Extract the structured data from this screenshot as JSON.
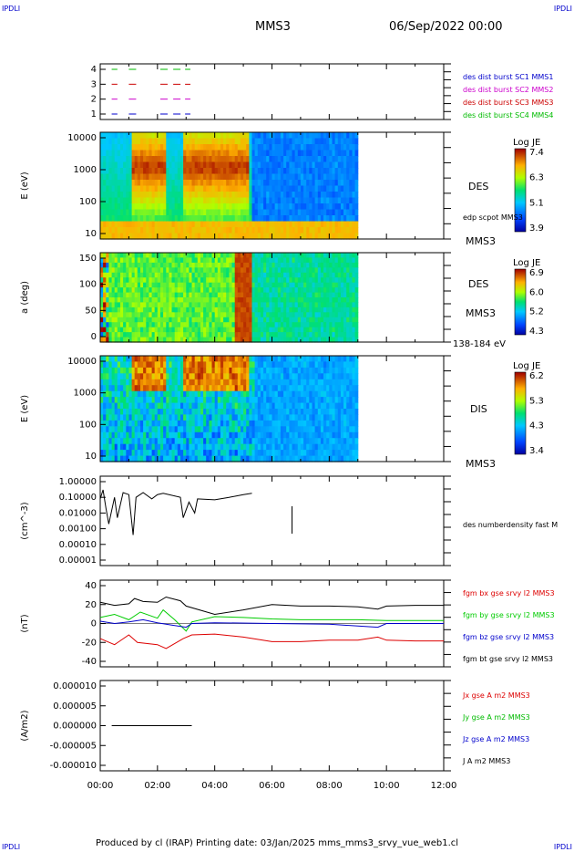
{
  "corner_labels": {
    "top_left": "IPDLI",
    "top_right": "IPDLI",
    "bottom_left": "IPDLI",
    "bottom_right": "IPDLI"
  },
  "header": {
    "spacecraft": "MMS3",
    "datetime": "06/Sep/2022 00:00"
  },
  "footer": {
    "text": "Produced by cl (IRAP)   Printing date: 03/Jan/2025   mms_mms3_srvy_vue_web1.cl"
  },
  "chart_data": [
    {
      "type": "line",
      "title": "",
      "yticks": [
        "4",
        "3",
        "2",
        "1"
      ],
      "legend": [
        {
          "text": "des dist burst SC1 MMS1",
          "color": "#0000cc",
          "value": 1
        },
        {
          "text": "des dist burst SC2 MMS2",
          "color": "#cc00cc",
          "value": 2
        },
        {
          "text": "des dist burst SC3 MMS3",
          "color": "#cc0000",
          "value": 3
        },
        {
          "text": "des dist burst SC4 MMS4",
          "color": "#00bb00",
          "value": 4
        }
      ],
      "segments_hours": [
        [
          0.4,
          0.6
        ],
        [
          1.0,
          1.35
        ],
        [
          2.1,
          2.4
        ],
        [
          2.55,
          3.15
        ]
      ]
    },
    {
      "type": "heatmap",
      "ylabel": "E (eV)",
      "yscale": "log",
      "yticks": [
        "10000",
        "1000",
        "100",
        "10"
      ],
      "colorbar": {
        "title": "Log JE",
        "ticks": [
          "7.4",
          "6.3",
          "5.1",
          "3.9"
        ]
      },
      "right_labels": [
        "DES",
        "edp scpot MMS3",
        "MMS3"
      ],
      "data_until_hour": 9.0
    },
    {
      "type": "heatmap",
      "ylabel": "a (deg)",
      "yticks": [
        "150",
        "100",
        "50",
        "0"
      ],
      "colorbar": {
        "title": "Log JE",
        "ticks": [
          "6.9",
          "6.0",
          "5.2",
          "4.3"
        ]
      },
      "right_labels": [
        "DES",
        "MMS3",
        "138-184 eV"
      ],
      "data_until_hour": 9.0
    },
    {
      "type": "heatmap",
      "ylabel": "E (eV)",
      "yscale": "log",
      "yticks": [
        "10000",
        "1000",
        "100",
        "10"
      ],
      "colorbar": {
        "title": "Log JE",
        "ticks": [
          "6.2",
          "5.3",
          "4.3",
          "3.4"
        ]
      },
      "right_labels": [
        "DIS",
        "MMS3"
      ],
      "data_until_hour": 9.0
    },
    {
      "type": "line",
      "ylabel": "(cm^-3)",
      "yscale": "log",
      "yticks": [
        "1.00000",
        "0.10000",
        "0.01000",
        "0.00100",
        "0.00010",
        "0.00001"
      ],
      "series": [
        {
          "name": "des numberdensity fast M",
          "color": "#000000"
        }
      ],
      "points": [
        [
          0.0,
          0.08
        ],
        [
          0.1,
          0.3
        ],
        [
          0.2,
          0.02
        ],
        [
          0.3,
          0.002
        ],
        [
          0.5,
          0.1
        ],
        [
          0.6,
          0.005
        ],
        [
          0.8,
          0.2
        ],
        [
          1.0,
          0.15
        ],
        [
          1.15,
          0.0004
        ],
        [
          1.25,
          0.1
        ],
        [
          1.5,
          0.2
        ],
        [
          1.8,
          0.08
        ],
        [
          2.0,
          0.15
        ],
        [
          2.2,
          0.18
        ],
        [
          2.8,
          0.1
        ],
        [
          2.9,
          0.005
        ],
        [
          3.1,
          0.05
        ],
        [
          3.3,
          0.01
        ],
        [
          3.4,
          0.08
        ],
        [
          4.0,
          0.07
        ],
        [
          4.5,
          0.1
        ],
        [
          5.0,
          0.15
        ],
        [
          5.3,
          0.18
        ]
      ]
    },
    {
      "type": "line",
      "ylabel": "(nT)",
      "yticks": [
        "40",
        "20",
        "0",
        "-20",
        "-40"
      ],
      "series": [
        {
          "name": "fgm bx gse srvy l2 MMS3",
          "color": "#dd0000"
        },
        {
          "name": "fgm by gse srvy l2 MMS3",
          "color": "#00cc00"
        },
        {
          "name": "fgm bz gse srvy l2 MMS3",
          "color": "#0000cc"
        },
        {
          "name": "fgm bt gse srvy l2 MMS3",
          "color": "#000000"
        }
      ],
      "points": {
        "bt": [
          [
            0,
            28
          ],
          [
            0.5,
            24
          ],
          [
            1,
            26
          ],
          [
            1.2,
            33
          ],
          [
            1.5,
            29
          ],
          [
            2,
            28
          ],
          [
            2.3,
            35
          ],
          [
            2.8,
            30
          ],
          [
            3.0,
            23
          ],
          [
            4,
            12
          ],
          [
            5,
            18
          ],
          [
            6,
            25
          ],
          [
            7,
            23
          ],
          [
            8,
            23
          ],
          [
            9,
            22
          ],
          [
            9.7,
            19
          ],
          [
            10,
            23
          ],
          [
            11,
            24
          ],
          [
            12,
            24
          ]
        ],
        "bx": [
          [
            0,
            -20
          ],
          [
            0.5,
            -28
          ],
          [
            1,
            -15
          ],
          [
            1.3,
            -25
          ],
          [
            2,
            -28
          ],
          [
            2.3,
            -33
          ],
          [
            2.9,
            -20
          ],
          [
            3.2,
            -15
          ],
          [
            4,
            -14
          ],
          [
            5,
            -18
          ],
          [
            6,
            -24
          ],
          [
            7,
            -24
          ],
          [
            8,
            -22
          ],
          [
            9,
            -22
          ],
          [
            9.7,
            -18
          ],
          [
            10,
            -22
          ],
          [
            11,
            -23
          ],
          [
            12,
            -23
          ]
        ],
        "by": [
          [
            0,
            8
          ],
          [
            0.5,
            12
          ],
          [
            1,
            5
          ],
          [
            1.4,
            15
          ],
          [
            2,
            7
          ],
          [
            2.2,
            18
          ],
          [
            2.6,
            5
          ],
          [
            3.0,
            -10
          ],
          [
            3.2,
            2
          ],
          [
            4,
            9
          ],
          [
            5,
            8
          ],
          [
            6,
            6
          ],
          [
            7,
            5
          ],
          [
            8,
            5
          ],
          [
            9,
            5
          ],
          [
            10,
            4
          ],
          [
            11,
            4
          ],
          [
            12,
            4
          ]
        ],
        "bz": [
          [
            0,
            3
          ],
          [
            0.5,
            0
          ],
          [
            1,
            2
          ],
          [
            1.5,
            5
          ],
          [
            2,
            1
          ],
          [
            2.5,
            -2
          ],
          [
            3.0,
            -5
          ],
          [
            3.2,
            0
          ],
          [
            4,
            1
          ],
          [
            6,
            0
          ],
          [
            8,
            -1
          ],
          [
            9.7,
            -5
          ],
          [
            10,
            0
          ],
          [
            12,
            0
          ]
        ]
      }
    },
    {
      "type": "line",
      "ylabel": "(A/m2)",
      "yticks": [
        "0.000010",
        "0.000005",
        "0.000000",
        "-0.000005",
        "-0.000010"
      ],
      "series": [
        {
          "name": "Jx gse A m2 MMS3",
          "color": "#dd0000"
        },
        {
          "name": "Jy gse A m2 MMS3",
          "color": "#00bb00"
        },
        {
          "name": "Jz gse A m2 MMS3",
          "color": "#0000cc"
        },
        {
          "name": "J A m2 MMS3",
          "color": "#000000"
        }
      ],
      "points": [
        [
          0.4,
          0
        ],
        [
          3.2,
          0
        ]
      ]
    }
  ],
  "x_axis": {
    "ticks": [
      "00:00",
      "02:00",
      "04:00",
      "06:00",
      "08:00",
      "10:00",
      "12:00"
    ]
  }
}
